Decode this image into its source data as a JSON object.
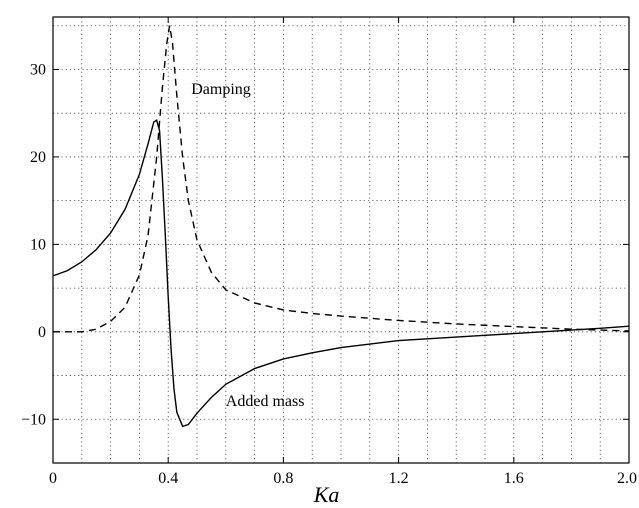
{
  "chart_data": {
    "type": "line",
    "title": "",
    "xlabel": "Ka",
    "ylabel": "",
    "xlim": [
      0,
      2.0
    ],
    "ylim": [
      -15,
      36
    ],
    "xticks": [
      0,
      0.4,
      0.8,
      1.2,
      1.6,
      2.0
    ],
    "xtick_labels": [
      "0",
      "0.4",
      "0.8",
      "1.2",
      "1.6",
      "2.0"
    ],
    "yticks": [
      -10,
      0,
      10,
      20,
      30
    ],
    "ytick_labels": [
      "−10",
      "0",
      "10",
      "20",
      "30"
    ],
    "grid": true,
    "grid_x": [
      0.1,
      0.2,
      0.3,
      0.4,
      0.5,
      0.6,
      0.7,
      0.8,
      0.9,
      1.0,
      1.1,
      1.2,
      1.3,
      1.4,
      1.5,
      1.6,
      1.7,
      1.8,
      1.9
    ],
    "grid_y": [
      -10,
      -5,
      0,
      5,
      10,
      15,
      20,
      25,
      30,
      35
    ],
    "series": [
      {
        "name": "Added mass",
        "line_style": "solid",
        "color": "#000000",
        "points": [
          [
            0.0,
            6.4
          ],
          [
            0.05,
            7.0
          ],
          [
            0.1,
            8.0
          ],
          [
            0.15,
            9.4
          ],
          [
            0.2,
            11.3
          ],
          [
            0.25,
            14.0
          ],
          [
            0.3,
            18.0
          ],
          [
            0.33,
            21.5
          ],
          [
            0.35,
            24.0
          ],
          [
            0.36,
            24.2
          ],
          [
            0.37,
            23.0
          ],
          [
            0.38,
            17.5
          ],
          [
            0.39,
            11.0
          ],
          [
            0.4,
            4.0
          ],
          [
            0.41,
            -2.0
          ],
          [
            0.42,
            -6.5
          ],
          [
            0.43,
            -9.2
          ],
          [
            0.45,
            -10.8
          ],
          [
            0.47,
            -10.6
          ],
          [
            0.5,
            -9.3
          ],
          [
            0.55,
            -7.5
          ],
          [
            0.6,
            -6.0
          ],
          [
            0.7,
            -4.2
          ],
          [
            0.8,
            -3.1
          ],
          [
            0.9,
            -2.4
          ],
          [
            1.0,
            -1.8
          ],
          [
            1.1,
            -1.4
          ],
          [
            1.2,
            -1.0
          ],
          [
            1.3,
            -0.8
          ],
          [
            1.4,
            -0.6
          ],
          [
            1.5,
            -0.4
          ],
          [
            1.6,
            -0.2
          ],
          [
            1.7,
            0.0
          ],
          [
            1.8,
            0.2
          ],
          [
            1.9,
            0.4
          ],
          [
            2.0,
            0.65
          ]
        ]
      },
      {
        "name": "Damping",
        "line_style": "dashed",
        "color": "#000000",
        "points": [
          [
            0.0,
            0.0
          ],
          [
            0.1,
            0.0
          ],
          [
            0.15,
            0.3
          ],
          [
            0.2,
            1.2
          ],
          [
            0.25,
            2.8
          ],
          [
            0.3,
            6.5
          ],
          [
            0.33,
            11.0
          ],
          [
            0.36,
            20.0
          ],
          [
            0.38,
            28.0
          ],
          [
            0.395,
            33.0
          ],
          [
            0.405,
            35.0
          ],
          [
            0.415,
            33.0
          ],
          [
            0.43,
            27.0
          ],
          [
            0.45,
            20.0
          ],
          [
            0.47,
            15.0
          ],
          [
            0.5,
            10.5
          ],
          [
            0.55,
            6.8
          ],
          [
            0.6,
            4.8
          ],
          [
            0.7,
            3.3
          ],
          [
            0.8,
            2.5
          ],
          [
            0.9,
            2.1
          ],
          [
            1.0,
            1.8
          ],
          [
            1.2,
            1.3
          ],
          [
            1.4,
            0.9
          ],
          [
            1.6,
            0.6
          ],
          [
            1.8,
            0.3
          ],
          [
            2.0,
            0.1
          ]
        ]
      }
    ],
    "annotations": [
      {
        "text": "Damping",
        "x": 0.48,
        "y": 27.2,
        "anchor": "start"
      },
      {
        "text": "Added mass",
        "x": 0.6,
        "y": -8.5,
        "anchor": "start"
      }
    ]
  }
}
